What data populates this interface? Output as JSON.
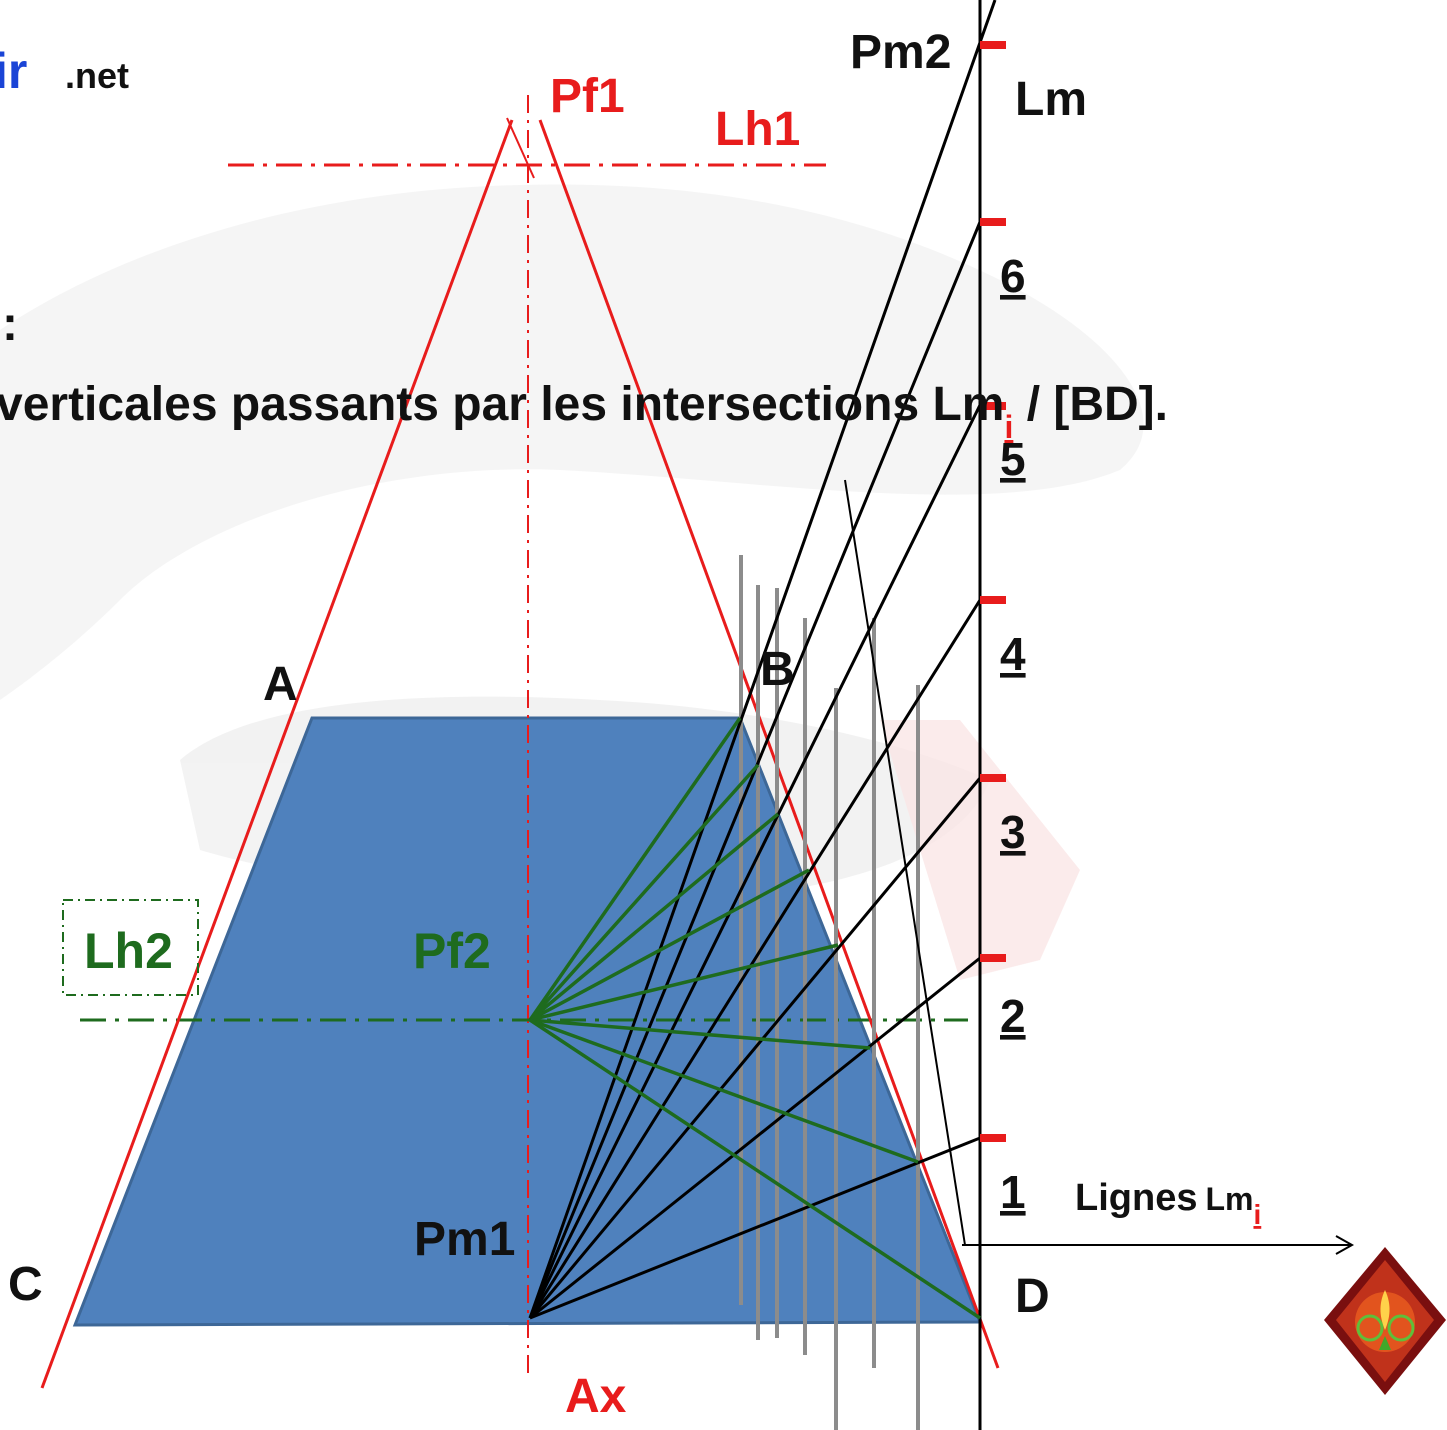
{
  "site_suffix": "ir",
  "site_tld": ".net",
  "colon": ":",
  "instruction": {
    "text_before": "verticales passants par les intersections Lm",
    "subscript": "i",
    "text_after": " / [BD]."
  },
  "points": {
    "pf1": "Pf1",
    "pf2": "Pf2",
    "pm1": "Pm1",
    "pm2": "Pm2",
    "a": "A",
    "b": "B",
    "c": "C",
    "d": "D",
    "ax": "Ax"
  },
  "lines": {
    "lh1": "Lh1",
    "lh2": "Lh2",
    "lm": "Lm",
    "lignes_prefix": "Lignes",
    "lignes_lm": "Lm",
    "lignes_subscript": "i"
  },
  "scale_marks": [
    "1",
    "2",
    "3",
    "4",
    "5",
    "6"
  ],
  "colors": {
    "trapezoid_fill": "#4f81bd",
    "construction_red": "#e81c1c",
    "horizon_green": "#1e6b1e",
    "measure_black": "#000000",
    "vertical_gray": "#8c8c8c",
    "logo_blue": "#1a44d6"
  },
  "icons": {
    "logo": "diamond-emblem-icon"
  }
}
